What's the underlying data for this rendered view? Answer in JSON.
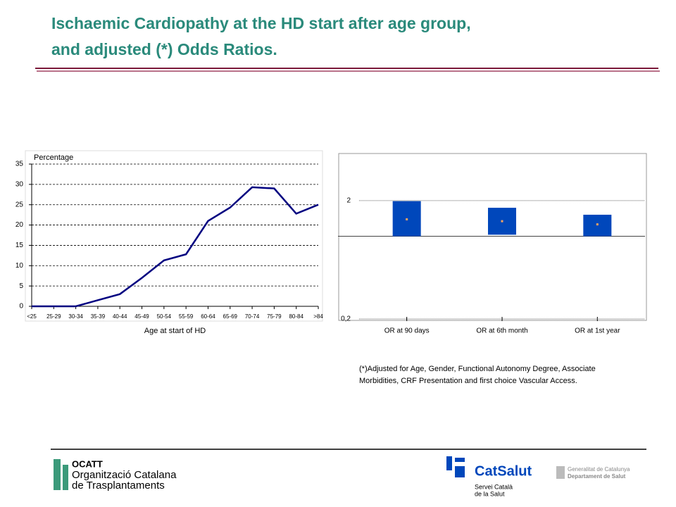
{
  "title": [
    "Ischaemic Cardiopathy at the HD start after age group,",
    "and adjusted (*) Odds Ratios."
  ],
  "footnote": [
    "(*)Adjusted for Age, Gender, Functional Autonomy Degree, Associate",
    "Morbidities, CRF Presentation and first choice Vascular Access."
  ],
  "logos": {
    "ocatt": [
      "OCATT",
      "Organització Catalana",
      "de Trasplantaments"
    ],
    "catsalut": [
      "CatSalut",
      "Servei Català",
      "de la Salut"
    ],
    "generalitat": [
      "Generalitat de Catalunya",
      "Departament de Salut"
    ]
  },
  "chart_data": [
    {
      "type": "line",
      "y_label": "Percentage",
      "x_label": "Age at start of HD",
      "categories": [
        "<25",
        "25-29",
        "30-34",
        "35-39",
        "40-44",
        "45-49",
        "50-54",
        "55-59",
        "60-64",
        "65-69",
        "70-74",
        "75-79",
        "80-84",
        ">84"
      ],
      "values": [
        0,
        0,
        0,
        1.5,
        3,
        7,
        11.3,
        12.8,
        21,
        24.3,
        29.3,
        29,
        22.8,
        25
      ],
      "color": "#000080",
      "ylim": [
        0,
        35
      ],
      "yticks": [
        0,
        5,
        10,
        15,
        20,
        25,
        30,
        35
      ],
      "grid": true
    },
    {
      "type": "interval",
      "categories": [
        "OR at 90 days",
        "OR at 6th month",
        "OR at 1st year"
      ],
      "lower": [
        1,
        1.03,
        1
      ],
      "upper": [
        1.98,
        1.74,
        1.52
      ],
      "estimate": [
        1.39,
        1.34,
        1.26
      ],
      "color": "#0047bb",
      "point_color": "#f4a460",
      "log_scale": true,
      "reference_line": 1,
      "ylim": [
        0.2,
        5
      ],
      "yticks": [
        {
          "value": 0.2,
          "label": "0,2"
        },
        2
      ],
      "grid": true
    }
  ]
}
